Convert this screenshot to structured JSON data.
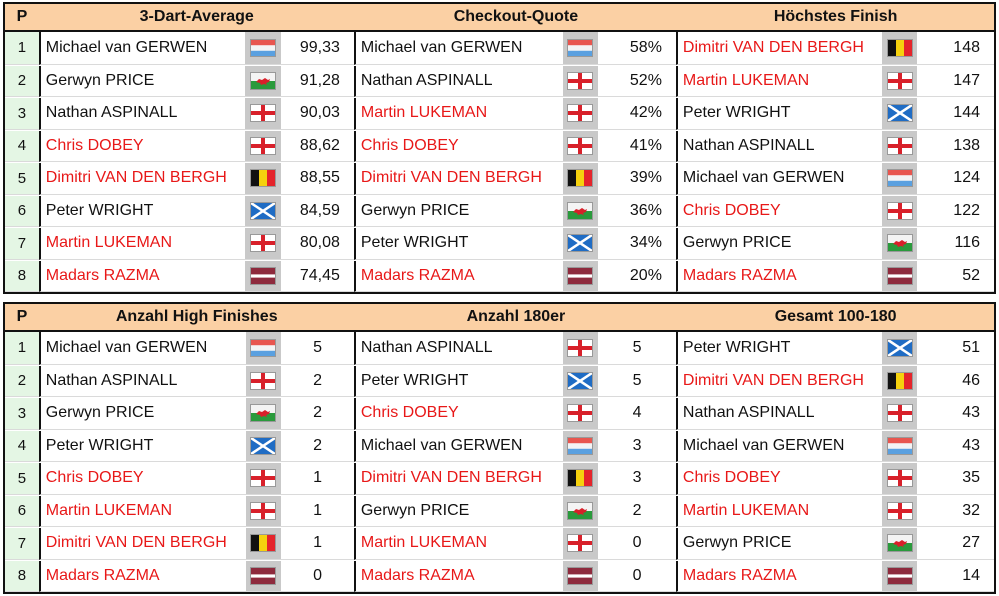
{
  "header_pos_label": "P",
  "tables": [
    {
      "titles": [
        "3-Dart-Average",
        "Checkout-Quote",
        "Höchstes Finish"
      ],
      "rows": [
        {
          "pos": "1",
          "c": [
            {
              "name": "Michael van GERWEN",
              "red": false,
              "flag": "netherlands-flag",
              "val": "99,33"
            },
            {
              "name": "Michael van GERWEN",
              "red": false,
              "flag": "netherlands-flag",
              "val": "58%"
            },
            {
              "name": "Dimitri VAN DEN BERGH",
              "red": true,
              "flag": "belgium-flag",
              "val": "148"
            }
          ]
        },
        {
          "pos": "2",
          "c": [
            {
              "name": "Gerwyn PRICE",
              "red": false,
              "flag": "wales-flag",
              "val": "91,28"
            },
            {
              "name": "Nathan ASPINALL",
              "red": false,
              "flag": "england-flag",
              "val": "52%"
            },
            {
              "name": "Martin LUKEMAN",
              "red": true,
              "flag": "england-flag",
              "val": "147"
            }
          ]
        },
        {
          "pos": "3",
          "c": [
            {
              "name": "Nathan ASPINALL",
              "red": false,
              "flag": "england-flag",
              "val": "90,03"
            },
            {
              "name": "Martin LUKEMAN",
              "red": true,
              "flag": "england-flag",
              "val": "42%"
            },
            {
              "name": "Peter WRIGHT",
              "red": false,
              "flag": "scotland-flag",
              "val": "144"
            }
          ]
        },
        {
          "pos": "4",
          "c": [
            {
              "name": "Chris DOBEY",
              "red": true,
              "flag": "england-flag",
              "val": "88,62"
            },
            {
              "name": "Chris DOBEY",
              "red": true,
              "flag": "england-flag",
              "val": "41%"
            },
            {
              "name": "Nathan ASPINALL",
              "red": false,
              "flag": "england-flag",
              "val": "138"
            }
          ]
        },
        {
          "pos": "5",
          "c": [
            {
              "name": "Dimitri VAN DEN BERGH",
              "red": true,
              "flag": "belgium-flag",
              "val": "88,55"
            },
            {
              "name": "Dimitri VAN DEN BERGH",
              "red": true,
              "flag": "belgium-flag",
              "val": "39%"
            },
            {
              "name": "Michael van GERWEN",
              "red": false,
              "flag": "netherlands-flag",
              "val": "124"
            }
          ]
        },
        {
          "pos": "6",
          "c": [
            {
              "name": "Peter WRIGHT",
              "red": false,
              "flag": "scotland-flag",
              "val": "84,59"
            },
            {
              "name": "Gerwyn PRICE",
              "red": false,
              "flag": "wales-flag",
              "val": "36%"
            },
            {
              "name": "Chris DOBEY",
              "red": true,
              "flag": "england-flag",
              "val": "122"
            }
          ]
        },
        {
          "pos": "7",
          "c": [
            {
              "name": "Martin LUKEMAN",
              "red": true,
              "flag": "england-flag",
              "val": "80,08"
            },
            {
              "name": "Peter WRIGHT",
              "red": false,
              "flag": "scotland-flag",
              "val": "34%"
            },
            {
              "name": "Gerwyn PRICE",
              "red": false,
              "flag": "wales-flag",
              "val": "116"
            }
          ]
        },
        {
          "pos": "8",
          "c": [
            {
              "name": "Madars RAZMA",
              "red": true,
              "flag": "latvia-flag",
              "val": "74,45"
            },
            {
              "name": "Madars RAZMA",
              "red": true,
              "flag": "latvia-flag",
              "val": "20%"
            },
            {
              "name": "Madars RAZMA",
              "red": true,
              "flag": "latvia-flag",
              "val": "52"
            }
          ]
        }
      ]
    },
    {
      "titles": [
        "Anzahl High Finishes",
        "Anzahl 180er",
        "Gesamt 100-180"
      ],
      "rows": [
        {
          "pos": "1",
          "c": [
            {
              "name": "Michael van GERWEN",
              "red": false,
              "flag": "netherlands-flag",
              "val": "5"
            },
            {
              "name": "Nathan ASPINALL",
              "red": false,
              "flag": "england-flag",
              "val": "5"
            },
            {
              "name": "Peter WRIGHT",
              "red": false,
              "flag": "scotland-flag",
              "val": "51"
            }
          ]
        },
        {
          "pos": "2",
          "c": [
            {
              "name": "Nathan ASPINALL",
              "red": false,
              "flag": "england-flag",
              "val": "2"
            },
            {
              "name": "Peter WRIGHT",
              "red": false,
              "flag": "scotland-flag",
              "val": "5"
            },
            {
              "name": "Dimitri VAN DEN BERGH",
              "red": true,
              "flag": "belgium-flag",
              "val": "46"
            }
          ]
        },
        {
          "pos": "3",
          "c": [
            {
              "name": "Gerwyn PRICE",
              "red": false,
              "flag": "wales-flag",
              "val": "2"
            },
            {
              "name": "Chris DOBEY",
              "red": true,
              "flag": "england-flag",
              "val": "4"
            },
            {
              "name": "Nathan ASPINALL",
              "red": false,
              "flag": "england-flag",
              "val": "43"
            }
          ]
        },
        {
          "pos": "4",
          "c": [
            {
              "name": "Peter WRIGHT",
              "red": false,
              "flag": "scotland-flag",
              "val": "2"
            },
            {
              "name": "Michael van GERWEN",
              "red": false,
              "flag": "netherlands-flag",
              "val": "3"
            },
            {
              "name": "Michael van GERWEN",
              "red": false,
              "flag": "netherlands-flag",
              "val": "43"
            }
          ]
        },
        {
          "pos": "5",
          "c": [
            {
              "name": "Chris DOBEY",
              "red": true,
              "flag": "england-flag",
              "val": "1"
            },
            {
              "name": "Dimitri VAN DEN BERGH",
              "red": true,
              "flag": "belgium-flag",
              "val": "3"
            },
            {
              "name": "Chris DOBEY",
              "red": true,
              "flag": "england-flag",
              "val": "35"
            }
          ]
        },
        {
          "pos": "6",
          "c": [
            {
              "name": "Martin LUKEMAN",
              "red": true,
              "flag": "england-flag",
              "val": "1"
            },
            {
              "name": "Gerwyn PRICE",
              "red": false,
              "flag": "wales-flag",
              "val": "2"
            },
            {
              "name": "Martin LUKEMAN",
              "red": true,
              "flag": "england-flag",
              "val": "32"
            }
          ]
        },
        {
          "pos": "7",
          "c": [
            {
              "name": "Dimitri VAN DEN BERGH",
              "red": true,
              "flag": "belgium-flag",
              "val": "1"
            },
            {
              "name": "Martin LUKEMAN",
              "red": true,
              "flag": "england-flag",
              "val": "0"
            },
            {
              "name": "Gerwyn PRICE",
              "red": false,
              "flag": "wales-flag",
              "val": "27"
            }
          ]
        },
        {
          "pos": "8",
          "c": [
            {
              "name": "Madars RAZMA",
              "red": true,
              "flag": "latvia-flag",
              "val": "0"
            },
            {
              "name": "Madars RAZMA",
              "red": true,
              "flag": "latvia-flag",
              "val": "0"
            },
            {
              "name": "Madars RAZMA",
              "red": true,
              "flag": "latvia-flag",
              "val": "14"
            }
          ]
        }
      ]
    }
  ],
  "colors": {
    "header_bg": "#fbd0a4",
    "position_bg": "#e4f6e4",
    "flag_cell_bg": "#c9c9c9",
    "highlight_text": "#e81818"
  }
}
